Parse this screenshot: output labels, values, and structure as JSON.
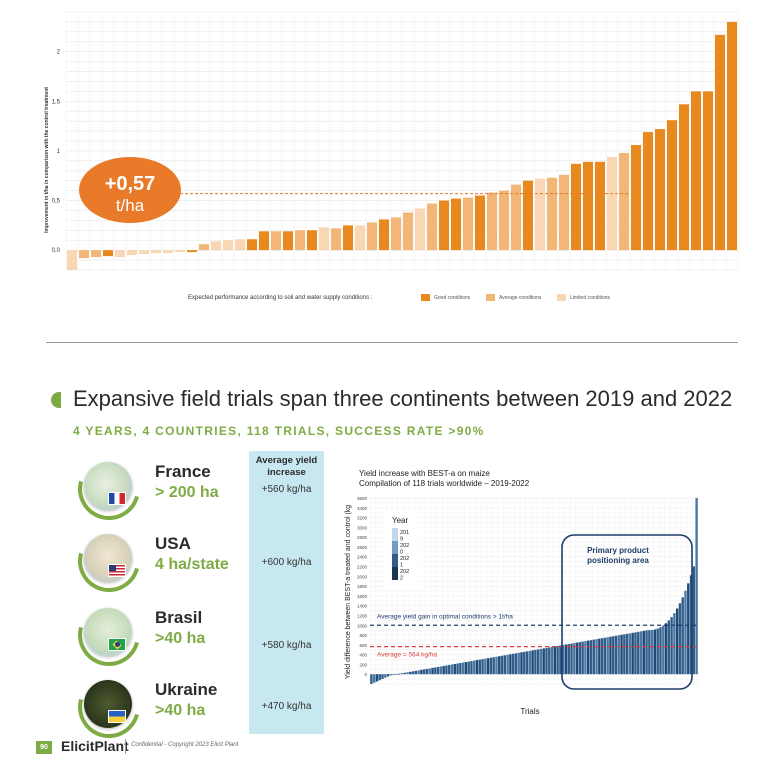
{
  "colors": {
    "good": "#e8891e",
    "average": "#f2b777",
    "limited": "#f9d7b5",
    "bubble": "#e87a2a",
    "accent_green": "#7fab45",
    "light_blue": "#c8e8f1",
    "bar_blue": "#2f5d8a",
    "dark_blue": "#1f3c6b",
    "avg_red": "#e23a3a"
  },
  "top_chart": {
    "ylabel": "Improvement in t/ha in comparison with the control treatment",
    "bubble": {
      "value": "+0,57",
      "unit": "t/ha"
    },
    "legend_intro": "Expected performance according to soil and water supply conditions :",
    "legend_items": [
      {
        "label": "Good conditions",
        "color_key": "good"
      },
      {
        "label": "Average conditions",
        "color_key": "average"
      },
      {
        "label": "Limited conditions",
        "color_key": "limited"
      }
    ]
  },
  "section": {
    "title": "Expansive field trials span three continents between 2019 and 2022",
    "subtitle": "4 YEARS, 4 COUNTRIES, 118 TRIALS, SUCCESS RATE >90%",
    "yield_header": "Average yield increase",
    "countries": [
      {
        "name": "France",
        "area": "> 200 ha",
        "yield": "+560 kg/ha",
        "flag": "france-flag"
      },
      {
        "name": "USA",
        "area": "4 ha/state",
        "yield": "+600 kg/ha",
        "flag": "usa-flag"
      },
      {
        "name": "Brasil",
        "area": ">40 ha",
        "yield": "+580 kg/ha",
        "flag": "brazil-flag"
      },
      {
        "name": "Ukraine",
        "area": ">40 ha",
        "yield": "+470 kg/ha",
        "flag": "ukraine-flag"
      }
    ]
  },
  "bottom_chart": {
    "title_line1": "Yield increase with BEST-a on maize",
    "title_line2": "Compilation of 118 trials worldwide – 2019-2022",
    "ylabel": "Yield difference between BEST-a treated and control (kg",
    "xlabel": "Trials",
    "legend_title": "Year",
    "legend_years": [
      "201\n9",
      "202\n0",
      "202\n1",
      "202\n2"
    ],
    "optimal_label": "Average yield gain in optimal conditions > 1t/ha",
    "average_label": "Average = 564 kg/ha",
    "box_label_line1": "Primary product",
    "box_label_line2": "positioning area"
  },
  "footer": {
    "page": "90",
    "logo": "ElicitPlant",
    "text": "Confidential - Copyright 2023 Elicit Plant"
  },
  "chart_data": [
    {
      "type": "bar",
      "ylabel": "Improvement in t/ha in comparison with the control treatment",
      "ylim": [
        -0.2,
        2.4
      ],
      "yticks": [
        "0,0",
        "0,5",
        "1",
        "1,5",
        "2"
      ],
      "grid": true,
      "legend_position": "bottom",
      "series": [
        {
          "name": "Good conditions",
          "condition": "good"
        },
        {
          "name": "Average conditions",
          "condition": "average"
        },
        {
          "name": "Limited conditions",
          "condition": "limited"
        }
      ],
      "values": [
        -0.2,
        -0.08,
        -0.07,
        -0.06,
        -0.07,
        -0.05,
        -0.04,
        -0.03,
        -0.03,
        -0.02,
        -0.02,
        0.06,
        0.09,
        0.1,
        0.11,
        0.11,
        0.19,
        0.19,
        0.19,
        0.2,
        0.2,
        0.23,
        0.22,
        0.25,
        0.25,
        0.28,
        0.31,
        0.33,
        0.38,
        0.42,
        0.47,
        0.5,
        0.52,
        0.53,
        0.55,
        0.58,
        0.6,
        0.66,
        0.7,
        0.72,
        0.73,
        0.76,
        0.87,
        0.89,
        0.89,
        0.94,
        0.98,
        1.06,
        1.19,
        1.22,
        1.31,
        1.47,
        1.6,
        1.6,
        2.17,
        2.3
      ],
      "conditions": [
        "limited",
        "average",
        "average",
        "good",
        "limited",
        "limited",
        "limited",
        "limited",
        "limited",
        "limited",
        "good",
        "average",
        "limited",
        "limited",
        "limited",
        "good",
        "good",
        "average",
        "good",
        "average",
        "good",
        "limited",
        "average",
        "good",
        "limited",
        "average",
        "good",
        "average",
        "average",
        "limited",
        "average",
        "good",
        "good",
        "average",
        "good",
        "average",
        "average",
        "average",
        "good",
        "limited",
        "average",
        "average",
        "good",
        "good",
        "good",
        "limited",
        "average",
        "good",
        "good",
        "good",
        "good",
        "good",
        "good",
        "good",
        "good",
        "good"
      ],
      "mean": 0.57
    },
    {
      "type": "bar",
      "title": "Yield increase with BEST-a on maize",
      "subtitle": "Compilation of 118 trials worldwide – 2019-2022",
      "ylabel": "Yield difference between BEST-a treated and control (kg",
      "xlabel": "Trials",
      "ylim": [
        -200,
        3600
      ],
      "yticks": [
        0,
        200,
        400,
        600,
        800,
        1000,
        1200,
        1400,
        1600,
        1800,
        2000,
        2200,
        2400,
        2600,
        2800,
        3000,
        3200,
        3400,
        3600
      ],
      "grid": true,
      "count": 118,
      "min": -200,
      "max": 3600,
      "mean": 564,
      "optimal_threshold": 1000,
      "legend_position": "top-left",
      "legend_title": "Year",
      "series": [
        {
          "name": "2019"
        },
        {
          "name": "2020"
        },
        {
          "name": "2021"
        },
        {
          "name": "2022"
        }
      ]
    }
  ]
}
